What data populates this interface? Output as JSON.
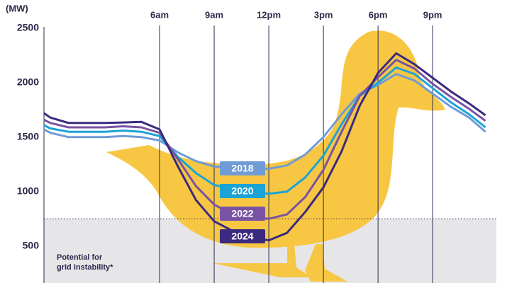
{
  "chart_data": {
    "type": "line",
    "y_label": "(MW)",
    "annotation": "Potential for grid instability*",
    "threshold": 750,
    "x": [
      -0.35,
      0,
      1,
      2,
      3,
      4,
      5,
      6,
      7,
      8,
      9,
      10,
      11,
      12,
      13,
      14,
      15,
      16,
      17,
      18,
      19,
      20,
      21,
      22,
      23,
      23.9
    ],
    "xlim": [
      -0.35,
      24.5
    ],
    "xticks": [
      {
        "value": 6,
        "label": "6am"
      },
      {
        "value": 9,
        "label": "9am"
      },
      {
        "value": 12,
        "label": "12pm"
      },
      {
        "value": 15,
        "label": "3pm"
      },
      {
        "value": 18,
        "label": "6pm"
      },
      {
        "value": 21,
        "label": "9pm"
      }
    ],
    "ylim": [
      160,
      2500
    ],
    "yticks": [
      500,
      1000,
      1500,
      2000,
      2500
    ],
    "series": [
      {
        "name": "2018",
        "color": "#6f9bd6",
        "values": [
          1570,
          1540,
          1500,
          1500,
          1500,
          1510,
          1500,
          1470,
          1360,
          1280,
          1230,
          1220,
          1210,
          1210,
          1240,
          1340,
          1500,
          1710,
          1900,
          1980,
          2080,
          2020,
          1900,
          1780,
          1680,
          1550
        ]
      },
      {
        "name": "2020",
        "color": "#1ba3d6",
        "values": [
          1610,
          1580,
          1550,
          1550,
          1550,
          1560,
          1550,
          1510,
          1320,
          1170,
          1060,
          1030,
          990,
          980,
          1000,
          1130,
          1330,
          1620,
          1880,
          2000,
          2140,
          2080,
          1950,
          1820,
          1710,
          1590
        ]
      },
      {
        "name": "2022",
        "color": "#7a52a3",
        "values": [
          1660,
          1630,
          1590,
          1590,
          1590,
          1600,
          1590,
          1540,
          1300,
          1050,
          880,
          790,
          760,
          750,
          790,
          950,
          1200,
          1550,
          1880,
          2050,
          2210,
          2130,
          1990,
          1870,
          1760,
          1650
        ]
      },
      {
        "name": "2024",
        "color": "#3b2a7f",
        "values": [
          1720,
          1680,
          1630,
          1630,
          1630,
          1635,
          1640,
          1571,
          1234,
          922,
          727,
          640,
          580,
          552,
          620,
          812,
          1039,
          1370,
          1790,
          2090,
          2270,
          2170,
          2045,
          1920,
          1810,
          1701
        ]
      }
    ]
  }
}
